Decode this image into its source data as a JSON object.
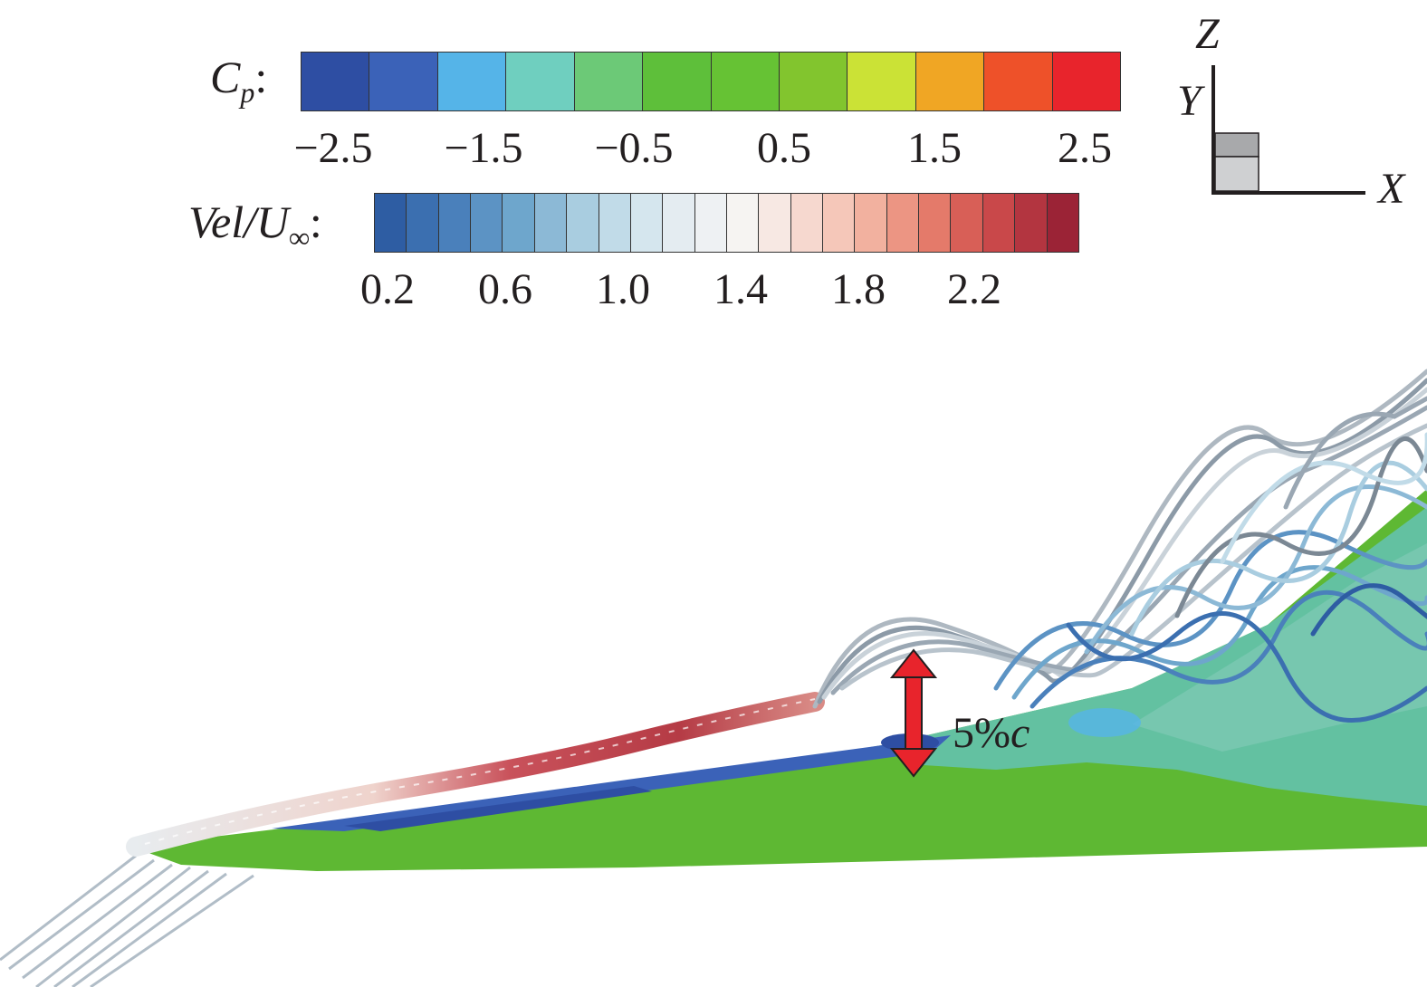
{
  "cp_legend": {
    "label_main": "C",
    "label_sub": "p",
    "label_suffix": ":",
    "colors": [
      "#2e4ea3",
      "#3b62b8",
      "#55b4e8",
      "#6fcfbf",
      "#6cc977",
      "#5ebf3a",
      "#66c234",
      "#82c52e",
      "#cbe236",
      "#f0a624",
      "#ee5129",
      "#e8242c"
    ],
    "ticks": [
      "−2.5",
      "−1.5",
      "−0.5",
      "0.5",
      "1.5",
      "2.5"
    ]
  },
  "vel_legend": {
    "label_main": "Vel/U",
    "label_sub": "∞",
    "label_suffix": ":",
    "colors": [
      "#2e5da3",
      "#3b6fb0",
      "#4a80bb",
      "#5c93c4",
      "#6ea6cc",
      "#8cb9d6",
      "#a9cde0",
      "#c1dbe8",
      "#d5e6ee",
      "#e4ecf1",
      "#eef1f3",
      "#f6f4f2",
      "#f7e8e3",
      "#f6d8cf",
      "#f5c7b9",
      "#f2b19f",
      "#ec9583",
      "#e47a6a",
      "#d85f57",
      "#c9484a",
      "#b33540",
      "#9b2336"
    ],
    "ticks": [
      "0.2",
      "0.6",
      "1.0",
      "1.4",
      "1.8",
      "2.2"
    ]
  },
  "axes": {
    "z": "Z",
    "y": "Y",
    "x": "X"
  },
  "annotation": {
    "text_main": "5%",
    "text_italic": "c",
    "arrow_color": "#e8242c"
  }
}
